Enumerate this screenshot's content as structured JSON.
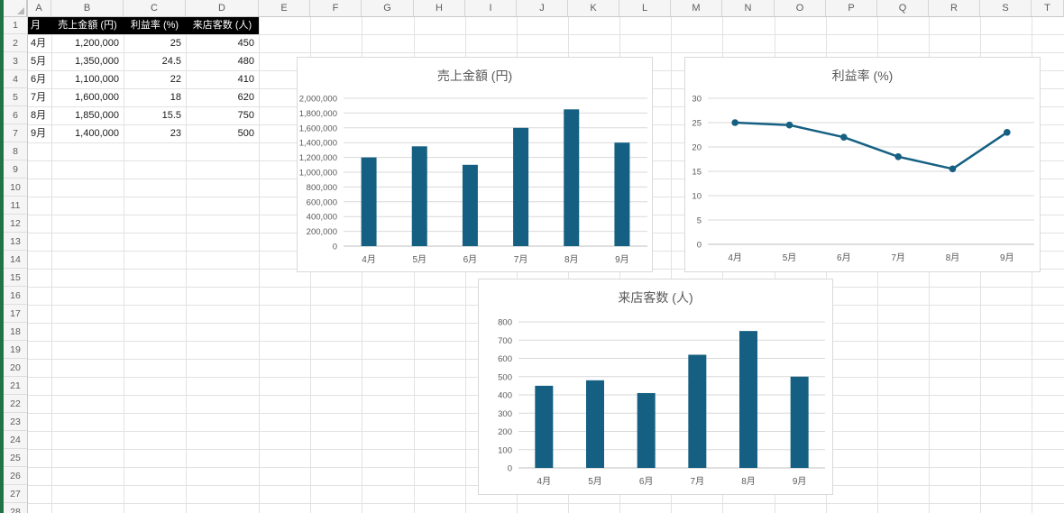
{
  "spreadsheet": {
    "column_letters": [
      "A",
      "B",
      "C",
      "D",
      "E",
      "F",
      "G",
      "H",
      "I",
      "J",
      "K",
      "L",
      "M",
      "N",
      "O",
      "P",
      "Q",
      "R",
      "S",
      "T"
    ],
    "row_numbers": [
      1,
      2,
      3,
      4,
      5,
      6,
      7,
      8,
      9,
      10,
      11,
      12,
      13,
      14,
      15,
      16,
      17,
      18,
      19,
      20,
      21,
      22,
      23,
      24,
      25,
      26,
      27,
      28
    ],
    "table": {
      "header_row": [
        "月",
        "売上金額 (円)",
        "利益率 (%)",
        "来店客数 (人)"
      ],
      "rows": [
        [
          "4月",
          "1,200,000",
          "25",
          "450"
        ],
        [
          "5月",
          "1,350,000",
          "24.5",
          "480"
        ],
        [
          "6月",
          "1,100,000",
          "22",
          "410"
        ],
        [
          "7月",
          "1,600,000",
          "18",
          "620"
        ],
        [
          "8月",
          "1,850,000",
          "15.5",
          "750"
        ],
        [
          "9月",
          "1,400,000",
          "23",
          "500"
        ]
      ]
    }
  },
  "chart_data": [
    {
      "type": "bar",
      "title": "売上金額 (円)",
      "categories": [
        "4月",
        "5月",
        "6月",
        "7月",
        "8月",
        "9月"
      ],
      "values": [
        1200000,
        1350000,
        1100000,
        1600000,
        1850000,
        1400000
      ],
      "ylim": [
        0,
        2000000
      ],
      "ytick_step": 200000,
      "tick_format": "comma",
      "bar_color": "#156082",
      "grid": true,
      "legend": "none"
    },
    {
      "type": "line",
      "title": "利益率 (%)",
      "categories": [
        "4月",
        "5月",
        "6月",
        "7月",
        "8月",
        "9月"
      ],
      "values": [
        25,
        24.5,
        22,
        18,
        15.5,
        23
      ],
      "ylim": [
        0,
        30
      ],
      "ytick_step": 5,
      "tick_format": "plain",
      "line_color": "#156082",
      "marker": "circle",
      "grid": true,
      "legend": "none"
    },
    {
      "type": "bar",
      "title": "来店客数 (人)",
      "categories": [
        "4月",
        "5月",
        "6月",
        "7月",
        "8月",
        "9月"
      ],
      "values": [
        450,
        480,
        410,
        620,
        750,
        500
      ],
      "ylim": [
        0,
        800
      ],
      "ytick_step": 100,
      "tick_format": "plain",
      "bar_color": "#156082",
      "grid": true,
      "legend": "none"
    }
  ],
  "colors": {
    "accent_teal": "#156082",
    "excel_edge_green": "#217346",
    "table_header_bg": "#000000",
    "table_header_text": "#ffffff",
    "chart_text": "#595959",
    "chart_gridline": "#d9d9d9",
    "axis_line": "#bfbfbf",
    "sheet_gridline": "#e2e2e2",
    "header_bg": "#f5f5f5"
  }
}
